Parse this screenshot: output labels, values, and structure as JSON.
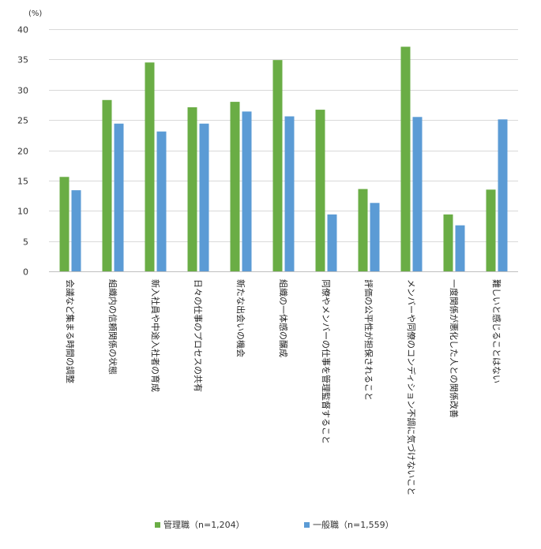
{
  "chart_data": {
    "type": "bar",
    "unit_label": "(%)",
    "categories": [
      "会議など集まる時間の調整",
      "組織内の信頼関係の状態",
      "新入社員や中途入社者の育成",
      "日々の仕事のプロセスの共有",
      "新たな出会いの機会",
      "組織の一体感の醸成",
      "同僚やメンバーの仕事を管理監督すること",
      "評価の公平性が担保されること",
      "メンバーや同僚のコンディション不調に気づけないこと",
      "一度関係が悪化した人との関係改善",
      "難しいと感じることはない"
    ],
    "series": [
      {
        "name": "管理職（n=1,204）",
        "color": "#6aad45",
        "values": [
          15.6,
          28.3,
          34.5,
          27.1,
          28.0,
          34.9,
          26.7,
          13.6,
          37.1,
          9.4,
          13.5
        ]
      },
      {
        "name": "一般職（n=1,559）",
        "color": "#5b9bd5",
        "values": [
          13.4,
          24.4,
          23.1,
          24.4,
          26.4,
          25.6,
          9.4,
          11.3,
          25.5,
          7.6,
          25.1
        ]
      }
    ],
    "ylim": [
      0,
      40
    ],
    "yticks": [
      0,
      5,
      10,
      15,
      20,
      25,
      30,
      35,
      40
    ],
    "grid": true,
    "legend_position": "bottom"
  }
}
